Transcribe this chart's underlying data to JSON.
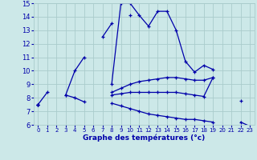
{
  "bg_color": "#cce8e8",
  "grid_color": "#aacccc",
  "line_color": "#0000aa",
  "title": "Graphe des températures (°c)",
  "xlim": [
    -0.5,
    23.5
  ],
  "ylim": [
    6,
    15
  ],
  "xtick_labels": [
    "0",
    "1",
    "2",
    "3",
    "4",
    "5",
    "6",
    "7",
    "8",
    "9",
    "10",
    "11",
    "12",
    "13",
    "14",
    "15",
    "16",
    "17",
    "18",
    "19",
    "20",
    "21",
    "22",
    "23"
  ],
  "yticks": [
    6,
    7,
    8,
    9,
    10,
    11,
    12,
    13,
    14,
    15
  ],
  "series": [
    [
      0,
      7.5
    ],
    [
      1,
      8.4
    ],
    [
      3,
      8.2
    ],
    [
      4,
      8.0
    ],
    [
      5,
      7.7
    ],
    [
      8,
      9.0
    ],
    [
      9,
      15.0
    ],
    [
      10,
      15.0
    ],
    [
      11,
      14.1
    ],
    [
      12,
      13.3
    ],
    [
      13,
      14.4
    ],
    [
      14,
      14.4
    ],
    [
      15,
      13.0
    ],
    [
      16,
      10.7
    ],
    [
      17,
      9.9
    ],
    [
      18,
      10.4
    ],
    [
      19,
      10.1
    ],
    [
      22,
      7.8
    ]
  ],
  "series2": [
    [
      3,
      8.2
    ],
    [
      4,
      10.0
    ],
    [
      5,
      11.0
    ],
    [
      7,
      12.5
    ],
    [
      8,
      13.5
    ],
    [
      10,
      14.1
    ]
  ],
  "series3": [
    [
      0,
      7.5
    ],
    [
      8,
      8.4
    ],
    [
      9,
      8.7
    ],
    [
      10,
      9.0
    ],
    [
      11,
      9.2
    ],
    [
      12,
      9.3
    ],
    [
      13,
      9.4
    ],
    [
      14,
      9.5
    ],
    [
      15,
      9.5
    ],
    [
      16,
      9.4
    ],
    [
      17,
      9.3
    ],
    [
      18,
      9.3
    ],
    [
      19,
      9.5
    ]
  ],
  "series4": [
    [
      0,
      7.5
    ],
    [
      8,
      8.2
    ],
    [
      9,
      8.3
    ],
    [
      10,
      8.4
    ],
    [
      11,
      8.4
    ],
    [
      12,
      8.4
    ],
    [
      13,
      8.4
    ],
    [
      14,
      8.4
    ],
    [
      15,
      8.4
    ],
    [
      16,
      8.3
    ],
    [
      17,
      8.2
    ],
    [
      18,
      8.1
    ],
    [
      19,
      9.5
    ]
  ],
  "series5": [
    [
      0,
      7.5
    ],
    [
      8,
      7.6
    ],
    [
      9,
      7.4
    ],
    [
      10,
      7.2
    ],
    [
      11,
      7.0
    ],
    [
      12,
      6.8
    ],
    [
      13,
      6.7
    ],
    [
      14,
      6.6
    ],
    [
      15,
      6.5
    ],
    [
      16,
      6.4
    ],
    [
      17,
      6.4
    ],
    [
      18,
      6.3
    ],
    [
      19,
      6.2
    ],
    [
      22,
      6.2
    ],
    [
      23,
      5.9
    ]
  ]
}
